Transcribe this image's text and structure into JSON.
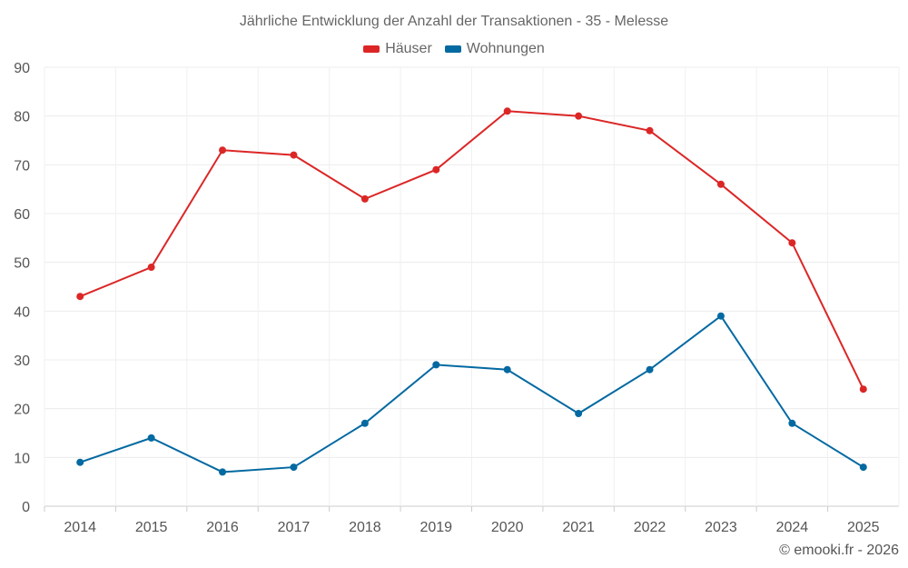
{
  "chart_data": {
    "type": "line",
    "title": "Jährliche Entwicklung der Anzahl der Transaktionen - 35 - Melesse",
    "categories": [
      "2014",
      "2015",
      "2016",
      "2017",
      "2018",
      "2019",
      "2020",
      "2021",
      "2022",
      "2023",
      "2024",
      "2025"
    ],
    "series": [
      {
        "name": "Häuser",
        "color": "#dc2626",
        "values": [
          43,
          49,
          73,
          72,
          63,
          69,
          81,
          80,
          77,
          66,
          54,
          24
        ]
      },
      {
        "name": "Wohnungen",
        "color": "#0369a1",
        "values": [
          9,
          14,
          7,
          8,
          17,
          29,
          28,
          19,
          28,
          39,
          17,
          8
        ]
      }
    ],
    "ylim": [
      0,
      90
    ],
    "yticks": [
      0,
      10,
      20,
      30,
      40,
      50,
      60,
      70,
      80,
      90
    ],
    "grid": true,
    "legend": "top-center",
    "xlabel": "",
    "ylabel": ""
  },
  "credit": "© emooki.fr - 2026"
}
